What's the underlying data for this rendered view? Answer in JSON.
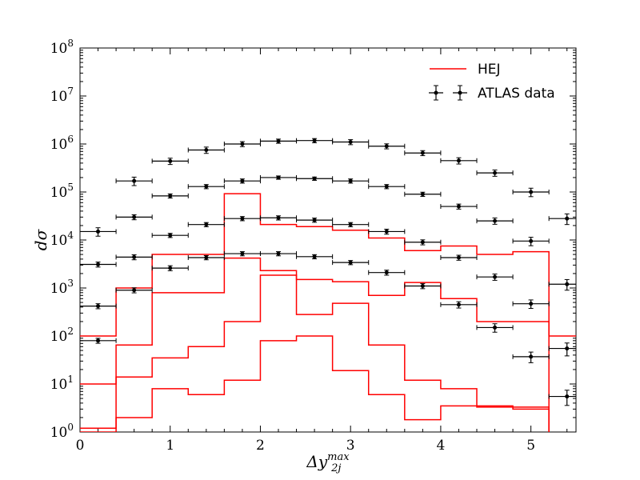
{
  "chart_data": {
    "type": "line",
    "ylabel": "dσ",
    "xlabel": "Δy_2j^max",
    "xlim": [
      0,
      5.5
    ],
    "ylim": [
      1,
      100000000
    ],
    "yscale": "log",
    "grid": false,
    "legend_position": "top-right",
    "x_ticks": [
      0,
      1,
      2,
      3,
      4,
      5
    ],
    "y_ticks": [
      1,
      10,
      100,
      1000,
      10000,
      100000,
      1000000,
      10000000,
      100000000
    ],
    "y_tick_exponents": [
      "0",
      "1",
      "2",
      "3",
      "4",
      "5",
      "6",
      "7",
      "8"
    ],
    "y_tick_base": "10",
    "bin_edges": [
      0,
      0.4,
      0.8,
      1.2,
      1.6,
      2.0,
      2.4,
      2.8,
      3.2,
      3.6,
      4.0,
      4.4,
      4.8,
      5.2,
      5.6
    ],
    "bin_centers": [
      0.2,
      0.6,
      1.0,
      1.4,
      1.8,
      2.2,
      2.6,
      3.0,
      3.4,
      3.8,
      4.2,
      4.6,
      5.0,
      5.4
    ],
    "series": [
      {
        "name": "HEJ",
        "color": "#ff0000",
        "style": "step",
        "values": [
          100,
          1000,
          5000,
          5000,
          92000,
          21000,
          19000,
          16000,
          11000,
          6000,
          7500,
          5000,
          5700,
          100
        ]
      },
      {
        "color": "#ff0000",
        "style": "step",
        "values": [
          10,
          65,
          800,
          800,
          4200,
          2300,
          1500,
          1350,
          700,
          1300,
          600,
          200,
          200,
          0
        ]
      },
      {
        "color": "#ff0000",
        "style": "step",
        "values": [
          1.2,
          14,
          35,
          60,
          200,
          1850,
          280,
          480,
          65,
          12,
          8,
          3.5,
          3.3,
          0
        ]
      },
      {
        "color": "#ff0000",
        "style": "step",
        "values": [
          1,
          2,
          8,
          6,
          12,
          80,
          100,
          19,
          6,
          1.8,
          3.5,
          3.3,
          3,
          0
        ]
      },
      {
        "name": "ATLAS data",
        "color": "#000000",
        "style": "errorbar",
        "values": [
          15000,
          170000,
          440000,
          750000,
          1000000,
          1150000,
          1180000,
          1100000,
          900000,
          650000,
          450000,
          250000,
          100000,
          28000
        ],
        "yerr_frac": [
          0.2,
          0.2,
          0.15,
          0.15,
          0.12,
          0.1,
          0.1,
          0.12,
          0.12,
          0.12,
          0.15,
          0.15,
          0.2,
          0.25
        ]
      },
      {
        "color": "#000000",
        "style": "errorbar",
        "values": [
          3100,
          30000,
          83000,
          130000,
          170000,
          200000,
          190000,
          170000,
          130000,
          90000,
          50000,
          25000,
          9500,
          1200
        ],
        "yerr_frac": [
          0.12,
          0.12,
          0.1,
          0.1,
          0.1,
          0.08,
          0.08,
          0.1,
          0.1,
          0.1,
          0.12,
          0.15,
          0.2,
          0.25
        ]
      },
      {
        "color": "#000000",
        "style": "errorbar",
        "values": [
          420,
          4400,
          12500,
          21000,
          28000,
          29000,
          26000,
          21000,
          15000,
          9000,
          4300,
          1700,
          470,
          55
        ],
        "yerr_frac": [
          0.12,
          0.12,
          0.1,
          0.1,
          0.1,
          0.1,
          0.1,
          0.1,
          0.12,
          0.12,
          0.12,
          0.15,
          0.2,
          0.3
        ]
      },
      {
        "color": "#000000",
        "style": "errorbar",
        "values": [
          80,
          900,
          2600,
          4300,
          5200,
          5200,
          4500,
          3400,
          2100,
          1100,
          450,
          150,
          37,
          5.5
        ],
        "yerr_frac": [
          0.12,
          0.12,
          0.12,
          0.1,
          0.1,
          0.1,
          0.1,
          0.1,
          0.12,
          0.12,
          0.15,
          0.2,
          0.25,
          0.35
        ]
      }
    ],
    "legend": [
      {
        "label": "HEJ",
        "marker": "line",
        "color": "#ff0000"
      },
      {
        "label": "ATLAS data",
        "marker": "errorbar",
        "color": "#000000"
      }
    ]
  }
}
